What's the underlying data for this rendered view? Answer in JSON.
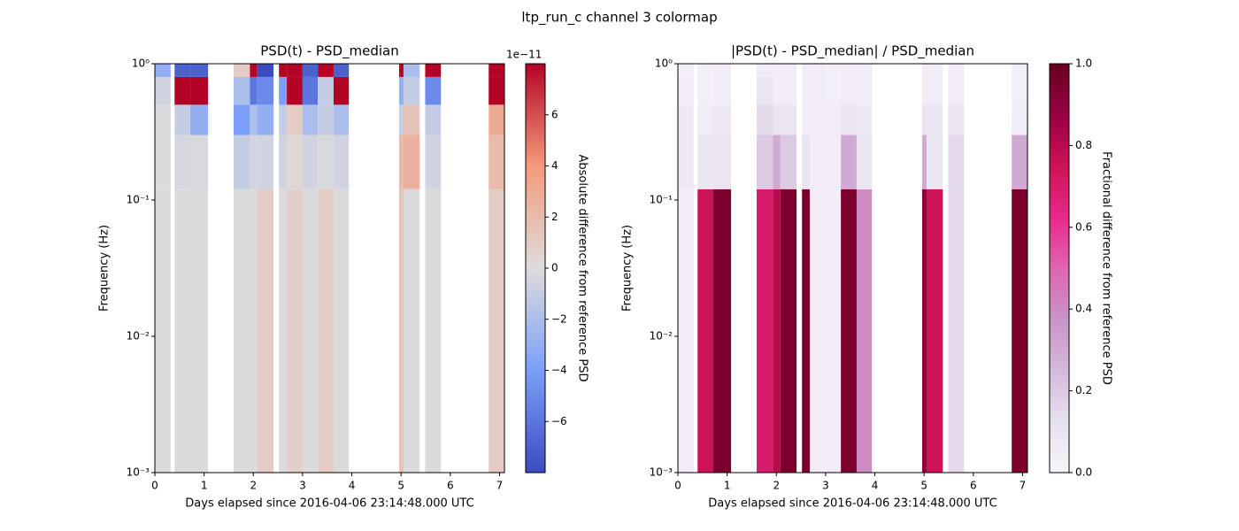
{
  "title": "ltp_run_c channel 3 colormap",
  "chart_data": [
    {
      "type": "heatmap",
      "title": "PSD(t) - PSD_median",
      "x_label": "Days elapsed since 2016-04-06 23:14:48.000 UTC",
      "y_label": "Frequency (Hz)",
      "xlim": [
        0,
        7.1
      ],
      "xticks": [
        0,
        1,
        2,
        3,
        4,
        5,
        6,
        7
      ],
      "ylim": [
        0.001,
        1
      ],
      "log_y": true,
      "yticks": [
        {
          "value": 0.001,
          "label": "10⁻³"
        },
        {
          "value": 0.01,
          "label": "10⁻²"
        },
        {
          "value": 0.1,
          "label": "10⁻¹"
        },
        {
          "value": 1,
          "label": "10⁰"
        }
      ],
      "x_edges": [
        0,
        0.32,
        0.4,
        0.72,
        1.08,
        1.6,
        1.93,
        2.08,
        2.41,
        2.52,
        2.68,
        3.0,
        3.31,
        3.63,
        3.94,
        4.96,
        5.05,
        5.38,
        5.49,
        5.81,
        6.78,
        7.1
      ],
      "y_edges": [
        0.001,
        0.12,
        0.3,
        0.5,
        0.8,
        1
      ],
      "values": [
        [
          -5e-13,
          -5e-13,
          -1e-12,
          -5e-12,
          -3e-11
        ],
        null,
        [
          -5e-13,
          -3e-12,
          -1e-11,
          8e-11,
          -7e-11
        ],
        [
          -5e-13,
          -2e-12,
          -3e-11,
          8e-11,
          -7e-11
        ],
        null,
        [
          -5e-13,
          -1e-11,
          -4e-11,
          -2e-11,
          1e-11
        ],
        [
          -5e-13,
          -5e-12,
          -2e-11,
          -6e-11,
          8e-11
        ],
        [
          1e-11,
          -5e-12,
          -3e-11,
          -5e-11,
          -8e-11
        ],
        null,
        [
          -5e-13,
          -5e-12,
          -1e-11,
          -4e-11,
          8e-11
        ],
        [
          8e-12,
          3e-12,
          1e-11,
          8e-11,
          8e-11
        ],
        [
          -5e-13,
          -5e-12,
          -2e-11,
          -6e-11,
          -7e-11
        ],
        [
          1e-11,
          -2e-12,
          -1e-11,
          -1e-11,
          8e-11
        ],
        [
          -5e-13,
          -5e-12,
          -2e-11,
          8e-11,
          -7e-11
        ],
        null,
        [
          1.5e-11,
          2e-11,
          -1e-11,
          -3e-11,
          8e-11
        ],
        [
          -5e-13,
          2.5e-11,
          1.5e-11,
          -1e-11,
          -2e-11
        ],
        null,
        [
          -5e-13,
          -5e-12,
          -1e-11,
          -5e-11,
          8e-11
        ],
        null,
        [
          1e-11,
          2e-11,
          3e-11,
          8e-11,
          8e-11
        ]
      ],
      "colormap": "coolwarm",
      "clim": [
        -8e-11,
        8e-11
      ],
      "colorbar_label": "Absolute difference from reference PSD",
      "colorbar_offset": "1e−11",
      "colorbar_ticks": [
        {
          "value": -6e-11,
          "label": "−6"
        },
        {
          "value": -4e-11,
          "label": "−4"
        },
        {
          "value": -2e-11,
          "label": "−2"
        },
        0,
        {
          "value": 2e-11,
          "label": "2"
        },
        {
          "value": 4e-11,
          "label": "4"
        },
        {
          "value": 6e-11,
          "label": "6"
        }
      ]
    },
    {
      "type": "heatmap",
      "title": "|PSD(t) - PSD_median| / PSD_median",
      "x_label": "Days elapsed since 2016-04-06 23:14:48.000 UTC",
      "y_label": "Frequency (Hz)",
      "xlim": [
        0,
        7.1
      ],
      "xticks": [
        0,
        1,
        2,
        3,
        4,
        5,
        6,
        7
      ],
      "ylim": [
        0.001,
        1
      ],
      "log_y": true,
      "yticks": [
        {
          "value": 0.001,
          "label": "10⁻³"
        },
        {
          "value": 0.01,
          "label": "10⁻²"
        },
        {
          "value": 0.1,
          "label": "10⁻¹"
        },
        {
          "value": 1,
          "label": "10⁰"
        }
      ],
      "x_edges": [
        0,
        0.32,
        0.4,
        0.72,
        1.08,
        1.6,
        1.93,
        2.08,
        2.41,
        2.52,
        2.68,
        3.0,
        3.31,
        3.63,
        3.94,
        4.96,
        5.05,
        5.38,
        5.49,
        5.81,
        6.78,
        7.1
      ],
      "y_edges": [
        0.001,
        0.12,
        0.3,
        0.5,
        0.8,
        1
      ],
      "values": [
        [
          0.05,
          0.08,
          0.08,
          0.05,
          0.03
        ],
        null,
        [
          0.75,
          0.1,
          0.05,
          0.03,
          0.03
        ],
        [
          0.95,
          0.1,
          0.08,
          0.05,
          0.05
        ],
        null,
        [
          0.7,
          0.2,
          0.15,
          0.1,
          0.05
        ],
        [
          0.8,
          0.3,
          0.1,
          0.05,
          0.05
        ],
        [
          0.95,
          0.2,
          0.1,
          0.05,
          0.05
        ],
        null,
        [
          0.95,
          0.1,
          0.05,
          0.05,
          0.05
        ],
        [
          0.05,
          0.05,
          0.05,
          0.05,
          0.05
        ],
        [
          0.05,
          0.05,
          0.05,
          0.03,
          0.03
        ],
        [
          0.95,
          0.3,
          0.1,
          0.05,
          0.05
        ],
        [
          0.4,
          0.1,
          0.08,
          0.05,
          0.05
        ],
        null,
        [
          0.9,
          0.3,
          0.1,
          0.05,
          0.05
        ],
        [
          0.75,
          0.1,
          0.1,
          0.05,
          0.05
        ],
        null,
        [
          0.15,
          0.15,
          0.1,
          0.05,
          0.05
        ],
        null,
        [
          0.95,
          0.3,
          0.05,
          0.03,
          0.03
        ]
      ],
      "colormap": "PuRd",
      "clim": [
        0,
        1
      ],
      "colorbar_label": "Fractional difference from reference PSD",
      "colorbar_ticks": [
        {
          "value": 0,
          "label": "0.0"
        },
        0.2,
        0.4,
        0.6,
        0.8,
        {
          "value": 1,
          "label": "1.0"
        }
      ]
    }
  ]
}
